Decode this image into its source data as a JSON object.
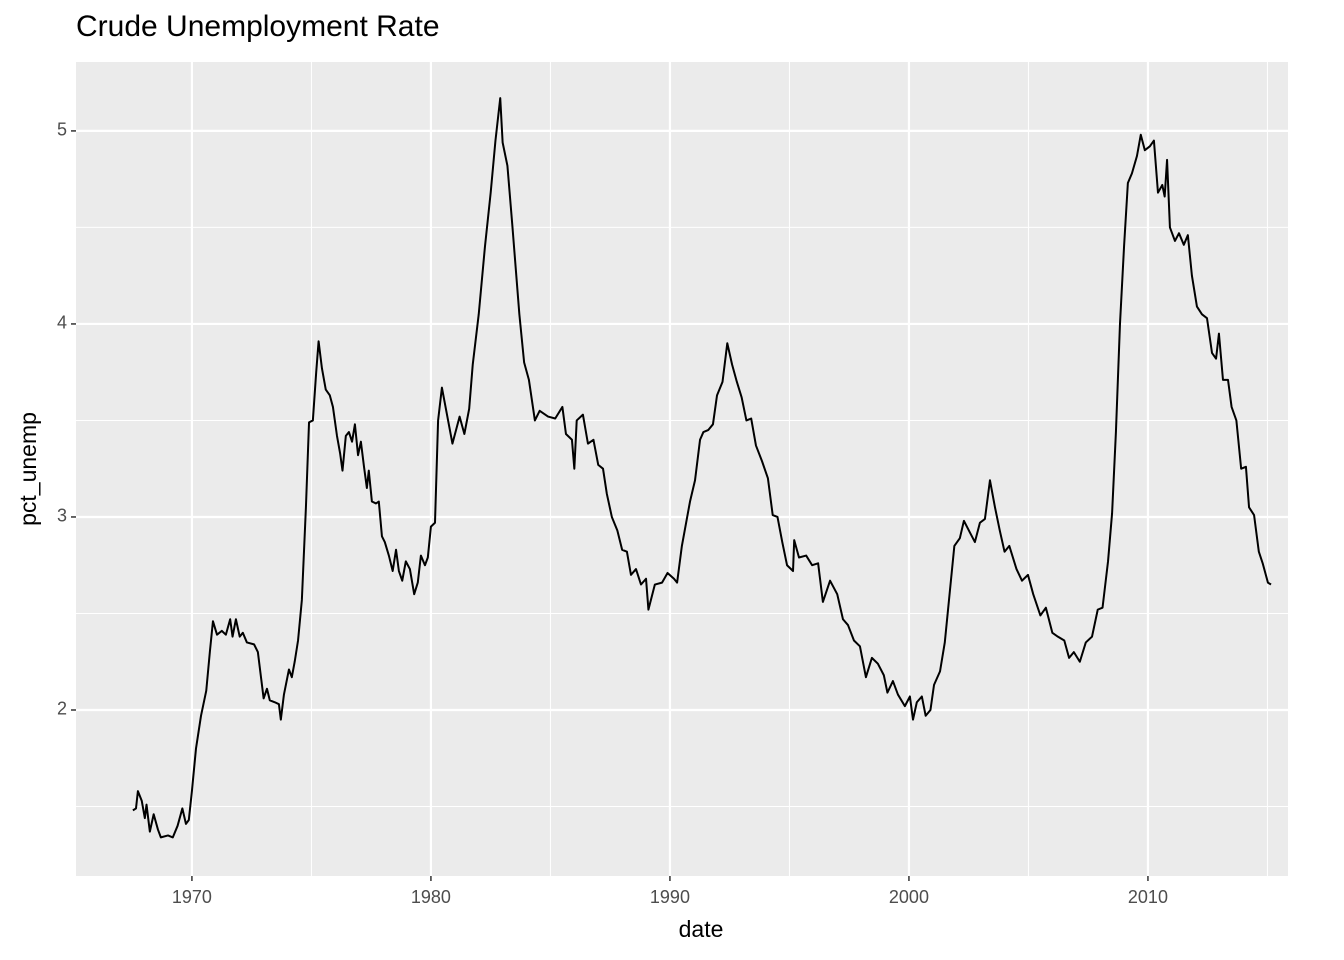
{
  "chart_data": {
    "type": "line",
    "title": "Crude Unemployment Rate",
    "x_label": "date",
    "y_label": "pct_unemp",
    "color": "#000000",
    "grid": true,
    "xlim": [
      1965.15,
      2015.86
    ],
    "ylim": [
      1.14,
      5.357
    ],
    "xticks": [
      1970,
      1980,
      1990,
      2000,
      2010
    ],
    "yticks": [
      2,
      3,
      4,
      5
    ],
    "xminor": [
      1975,
      1985,
      1995,
      2005,
      2015
    ],
    "yminor": [
      1.5,
      2.5,
      3.5,
      4.5
    ],
    "x": [
      1967.53,
      1967.66,
      1967.74,
      1967.9,
      1968.03,
      1968.1,
      1968.24,
      1968.4,
      1968.58,
      1968.7,
      1969.0,
      1969.2,
      1969.4,
      1969.6,
      1969.75,
      1969.87,
      1970.0,
      1970.17,
      1970.38,
      1970.6,
      1970.75,
      1970.88,
      1971.05,
      1971.25,
      1971.42,
      1971.6,
      1971.7,
      1971.84,
      1972.0,
      1972.13,
      1972.3,
      1972.6,
      1972.76,
      1972.9,
      1973.0,
      1973.14,
      1973.26,
      1973.47,
      1973.64,
      1973.72,
      1973.85,
      1974.06,
      1974.18,
      1974.3,
      1974.44,
      1974.6,
      1974.77,
      1974.9,
      1975.06,
      1975.2,
      1975.3,
      1975.44,
      1975.6,
      1975.77,
      1975.9,
      1976.07,
      1976.2,
      1976.3,
      1976.44,
      1976.57,
      1976.7,
      1976.82,
      1976.95,
      1977.07,
      1977.2,
      1977.32,
      1977.4,
      1977.53,
      1977.7,
      1977.82,
      1977.95,
      1978.07,
      1978.24,
      1978.4,
      1978.54,
      1978.66,
      1978.8,
      1978.95,
      1979.12,
      1979.3,
      1979.45,
      1979.58,
      1979.75,
      1979.87,
      1980.0,
      1980.17,
      1980.3,
      1980.46,
      1980.9,
      1981.2,
      1981.4,
      1981.6,
      1981.75,
      1982.0,
      1982.26,
      1982.5,
      1982.7,
      1982.9,
      1983.0,
      1983.2,
      1983.4,
      1983.7,
      1983.9,
      1984.1,
      1984.35,
      1984.55,
      1984.9,
      1985.2,
      1985.5,
      1985.65,
      1985.9,
      1986.0,
      1986.1,
      1986.36,
      1986.57,
      1986.8,
      1987.0,
      1987.2,
      1987.36,
      1987.57,
      1987.8,
      1988.0,
      1988.2,
      1988.37,
      1988.58,
      1988.79,
      1989.0,
      1989.1,
      1989.37,
      1989.67,
      1989.9,
      1990.17,
      1990.3,
      1990.5,
      1990.84,
      1991.05,
      1991.26,
      1991.4,
      1991.6,
      1991.8,
      1991.97,
      1992.2,
      1992.4,
      1992.6,
      1992.8,
      1993.0,
      1993.2,
      1993.4,
      1993.6,
      1993.85,
      1994.1,
      1994.3,
      1994.5,
      1994.7,
      1994.9,
      1995.15,
      1995.2,
      1995.4,
      1995.7,
      1995.95,
      1996.2,
      1996.4,
      1996.7,
      1997.0,
      1997.24,
      1997.45,
      1997.7,
      1997.95,
      1998.2,
      1998.45,
      1998.7,
      1998.95,
      1999.1,
      1999.33,
      1999.54,
      1999.83,
      2000.04,
      2000.17,
      2000.33,
      2000.54,
      2000.7,
      2000.9,
      2001.05,
      2001.3,
      2001.5,
      2001.7,
      2001.9,
      2002.13,
      2002.3,
      2002.55,
      2002.76,
      2002.97,
      2003.18,
      2003.39,
      2003.6,
      2003.8,
      2004.0,
      2004.2,
      2004.5,
      2004.73,
      2004.98,
      2005.2,
      2005.5,
      2005.73,
      2006.0,
      2006.23,
      2006.5,
      2006.7,
      2006.9,
      2007.15,
      2007.4,
      2007.66,
      2007.9,
      2008.1,
      2008.33,
      2008.5,
      2008.66,
      2008.83,
      2009.0,
      2009.16,
      2009.33,
      2009.54,
      2009.7,
      2009.87,
      2010.08,
      2010.25,
      2010.42,
      2010.6,
      2010.7,
      2010.8,
      2010.92,
      2011.13,
      2011.3,
      2011.5,
      2011.67,
      2011.84,
      2012.05,
      2012.26,
      2012.47,
      2012.68,
      2012.85,
      2012.97,
      2013.14,
      2013.35,
      2013.5,
      2013.7,
      2013.9,
      2014.1,
      2014.23,
      2014.44,
      2014.64,
      2014.8,
      2015.02,
      2015.15
    ],
    "values": [
      1.48,
      1.49,
      1.58,
      1.53,
      1.44,
      1.51,
      1.37,
      1.46,
      1.38,
      1.34,
      1.35,
      1.34,
      1.4,
      1.49,
      1.41,
      1.43,
      1.58,
      1.8,
      1.97,
      2.1,
      2.3,
      2.46,
      2.39,
      2.41,
      2.39,
      2.47,
      2.38,
      2.47,
      2.38,
      2.4,
      2.35,
      2.34,
      2.3,
      2.16,
      2.06,
      2.11,
      2.05,
      2.04,
      2.03,
      1.95,
      2.08,
      2.21,
      2.17,
      2.25,
      2.36,
      2.57,
      3.05,
      3.49,
      3.5,
      3.75,
      3.91,
      3.77,
      3.66,
      3.63,
      3.57,
      3.42,
      3.33,
      3.24,
      3.42,
      3.44,
      3.39,
      3.48,
      3.32,
      3.39,
      3.26,
      3.15,
      3.24,
      3.08,
      3.07,
      3.08,
      2.9,
      2.87,
      2.8,
      2.72,
      2.83,
      2.72,
      2.67,
      2.77,
      2.73,
      2.6,
      2.66,
      2.8,
      2.75,
      2.79,
      2.95,
      2.97,
      3.5,
      3.67,
      3.38,
      3.52,
      3.43,
      3.56,
      3.79,
      4.05,
      4.4,
      4.68,
      4.95,
      5.17,
      4.94,
      4.82,
      4.52,
      4.05,
      3.8,
      3.71,
      3.5,
      3.55,
      3.52,
      3.51,
      3.57,
      3.43,
      3.4,
      3.25,
      3.5,
      3.53,
      3.38,
      3.4,
      3.27,
      3.25,
      3.12,
      3.0,
      2.93,
      2.83,
      2.82,
      2.7,
      2.73,
      2.65,
      2.68,
      2.52,
      2.65,
      2.66,
      2.71,
      2.68,
      2.66,
      2.85,
      3.08,
      3.19,
      3.4,
      3.44,
      3.45,
      3.48,
      3.63,
      3.7,
      3.9,
      3.79,
      3.7,
      3.62,
      3.5,
      3.51,
      3.37,
      3.29,
      3.2,
      3.01,
      3.0,
      2.87,
      2.75,
      2.72,
      2.88,
      2.79,
      2.8,
      2.75,
      2.76,
      2.56,
      2.67,
      2.6,
      2.47,
      2.44,
      2.36,
      2.33,
      2.17,
      2.27,
      2.24,
      2.18,
      2.09,
      2.15,
      2.08,
      2.02,
      2.07,
      1.95,
      2.04,
      2.07,
      1.97,
      2.0,
      2.13,
      2.2,
      2.35,
      2.6,
      2.85,
      2.89,
      2.98,
      2.92,
      2.87,
      2.97,
      2.99,
      3.19,
      3.05,
      2.93,
      2.82,
      2.85,
      2.73,
      2.67,
      2.7,
      2.6,
      2.49,
      2.53,
      2.4,
      2.38,
      2.36,
      2.27,
      2.3,
      2.25,
      2.35,
      2.38,
      2.52,
      2.53,
      2.77,
      3.02,
      3.44,
      4.0,
      4.4,
      4.73,
      4.78,
      4.87,
      4.98,
      4.9,
      4.92,
      4.95,
      4.68,
      4.72,
      4.66,
      4.85,
      4.5,
      4.43,
      4.47,
      4.41,
      4.46,
      4.25,
      4.09,
      4.05,
      4.03,
      3.85,
      3.82,
      3.95,
      3.71,
      3.71,
      3.57,
      3.5,
      3.25,
      3.26,
      3.05,
      3.01,
      2.82,
      2.76,
      2.66,
      2.65
    ]
  }
}
